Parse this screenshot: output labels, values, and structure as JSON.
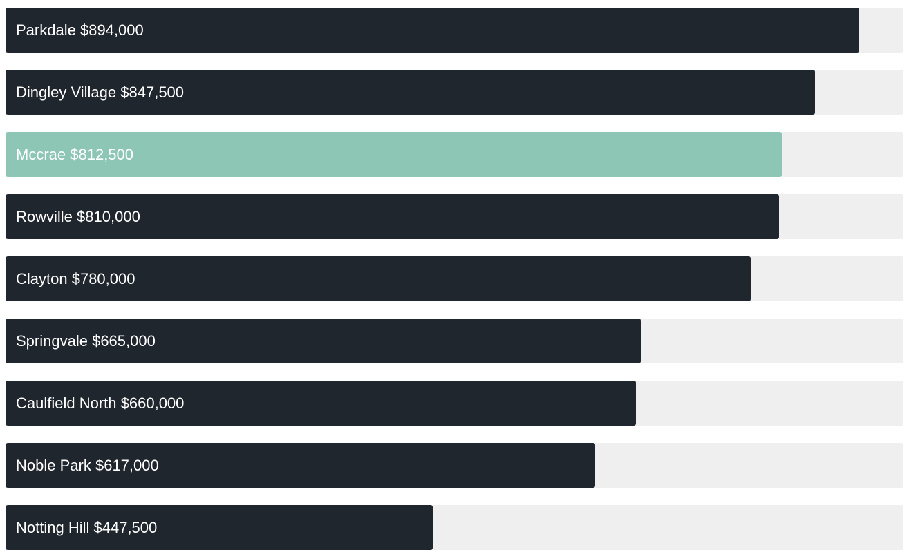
{
  "chart_data": {
    "type": "bar",
    "orientation": "horizontal",
    "categories": [
      "Parkdale",
      "Dingley Village",
      "Mccrae",
      "Rowville",
      "Clayton",
      "Springvale",
      "Caulfield North",
      "Noble Park",
      "Notting Hill"
    ],
    "values": [
      894000,
      847500,
      812500,
      810000,
      780000,
      665000,
      660000,
      617000,
      447500
    ],
    "labels": [
      "$894,000",
      "$847,500",
      "$812,500",
      "$810,000",
      "$780,000",
      "$665,000",
      "$660,000",
      "$617,000",
      "$447,500"
    ],
    "highlight": "Mccrae",
    "xlim": [
      0,
      940000
    ],
    "grid": false,
    "legend": "none",
    "title": "",
    "xlabel": "",
    "ylabel": ""
  },
  "colors": {
    "bar": "#20262e",
    "highlight_bar": "#8ec6b5",
    "track": "#efefef",
    "label": "#ffffff"
  }
}
